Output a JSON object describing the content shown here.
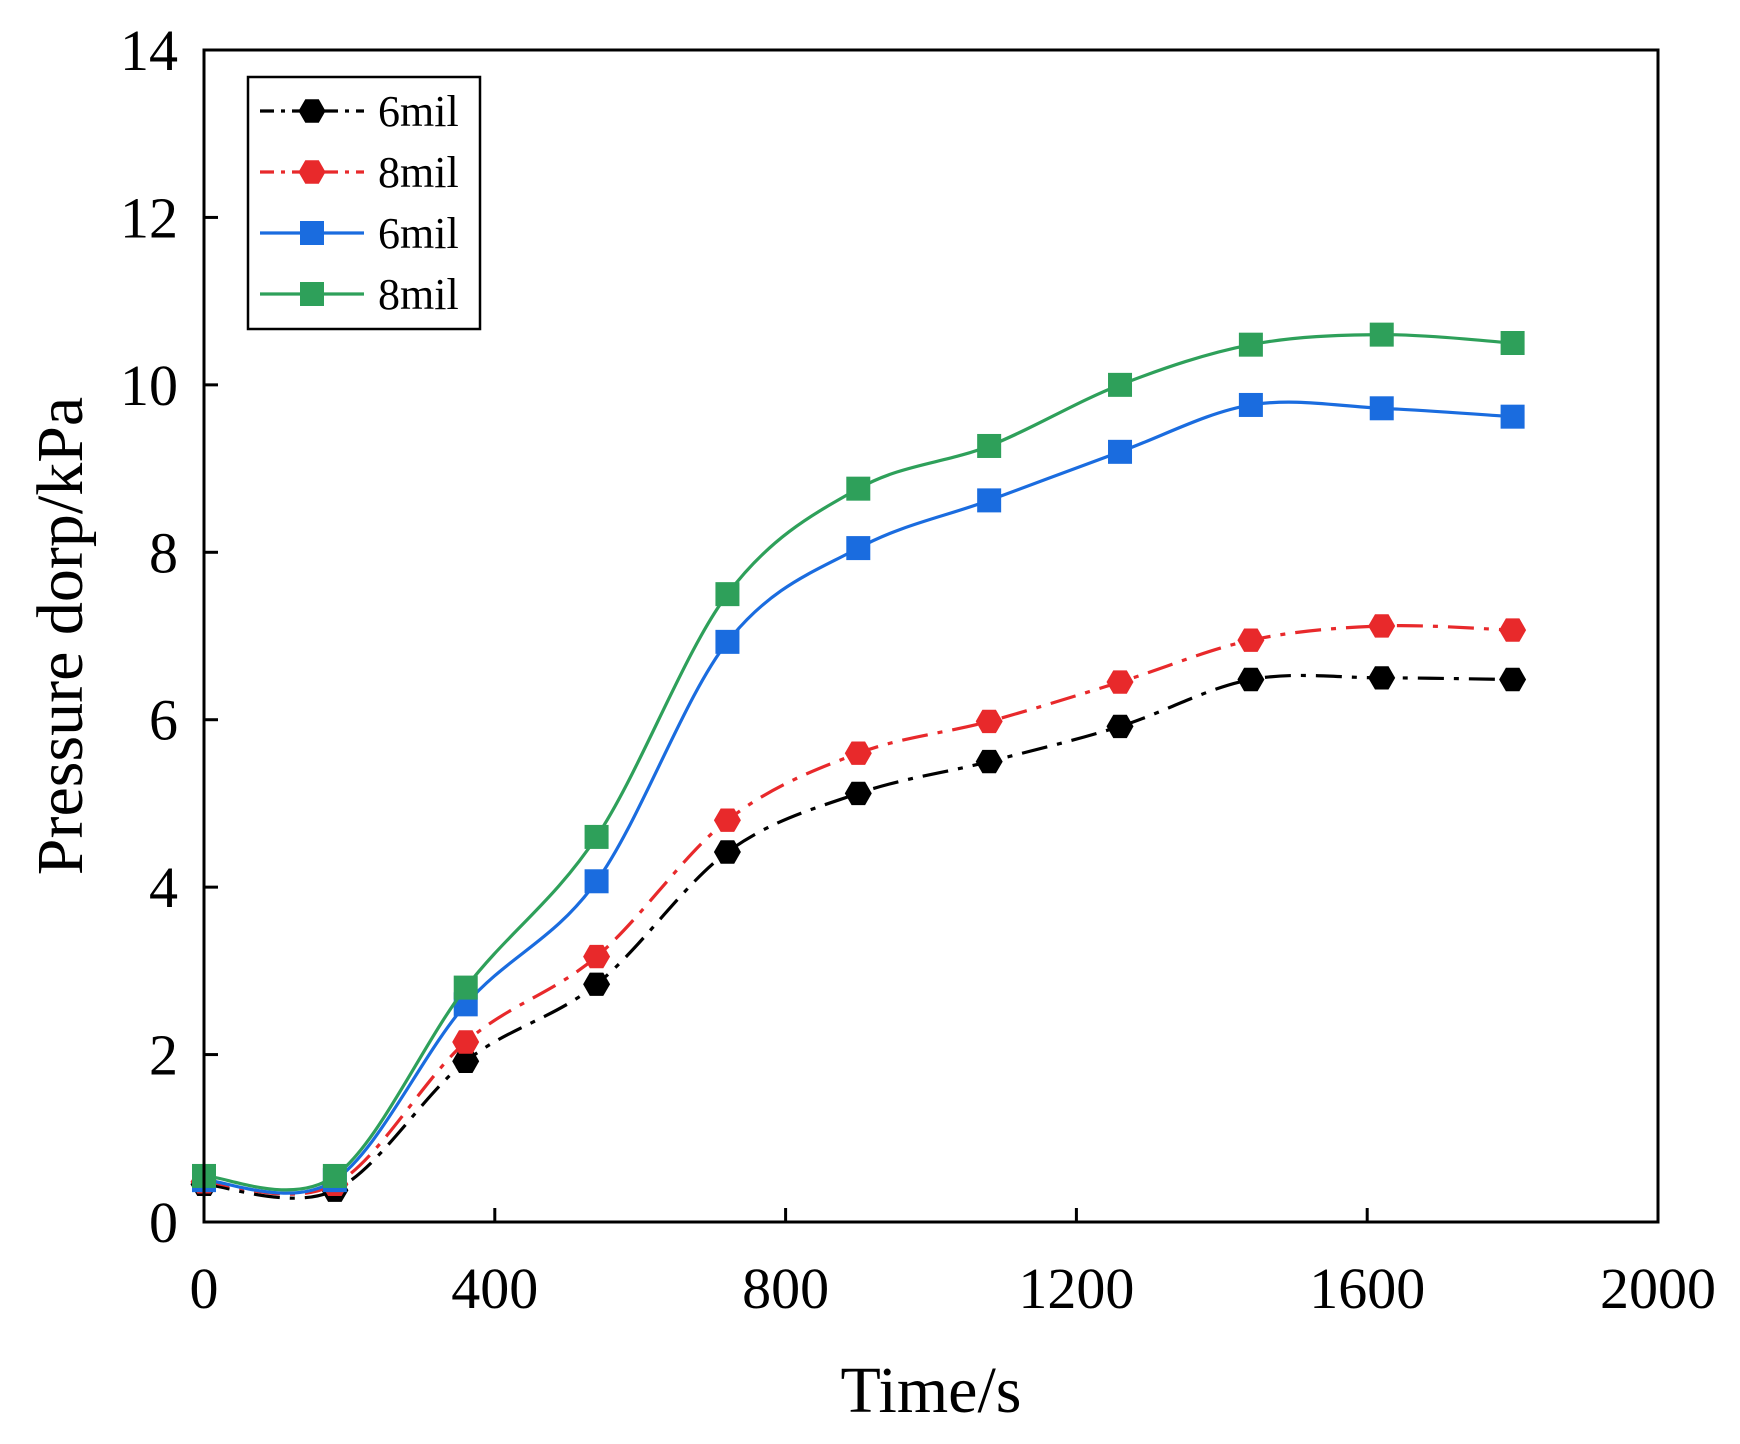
{
  "chart_data": {
    "type": "line",
    "title": "",
    "xlabel": "Time/s",
    "ylabel": "Pressure dorp/kPa",
    "xlim": [
      0,
      2000
    ],
    "ylim": [
      0,
      14
    ],
    "xticks": [
      0,
      400,
      800,
      1200,
      1600,
      2000
    ],
    "yticks": [
      0,
      2,
      4,
      6,
      8,
      10,
      12,
      14
    ],
    "grid": false,
    "legend_position": "top-left",
    "x": [
      0,
      180,
      360,
      540,
      720,
      900,
      1080,
      1260,
      1440,
      1620,
      1800
    ],
    "series": [
      {
        "name": "6mil",
        "color": "#000000",
        "marker": "hexagon",
        "line_style": "dash-dot",
        "values": [
          0.45,
          0.38,
          1.92,
          2.84,
          4.42,
          5.12,
          5.5,
          5.92,
          6.48,
          6.5,
          6.48
        ]
      },
      {
        "name": "8mil",
        "color": "#e8292b",
        "marker": "hexagon",
        "line_style": "dash-dot",
        "values": [
          0.48,
          0.45,
          2.15,
          3.17,
          4.8,
          5.6,
          5.98,
          6.45,
          6.95,
          7.12,
          7.07
        ]
      },
      {
        "name": "6mil",
        "color": "#1a6cdf",
        "marker": "square",
        "line_style": "solid",
        "values": [
          0.5,
          0.5,
          2.6,
          4.07,
          6.93,
          8.05,
          8.62,
          9.2,
          9.76,
          9.72,
          9.62
        ]
      },
      {
        "name": "8mil",
        "color": "#2ea05a",
        "marker": "square",
        "line_style": "solid",
        "values": [
          0.55,
          0.55,
          2.8,
          4.6,
          7.5,
          8.76,
          9.27,
          10.0,
          10.48,
          10.6,
          10.5
        ]
      }
    ]
  }
}
